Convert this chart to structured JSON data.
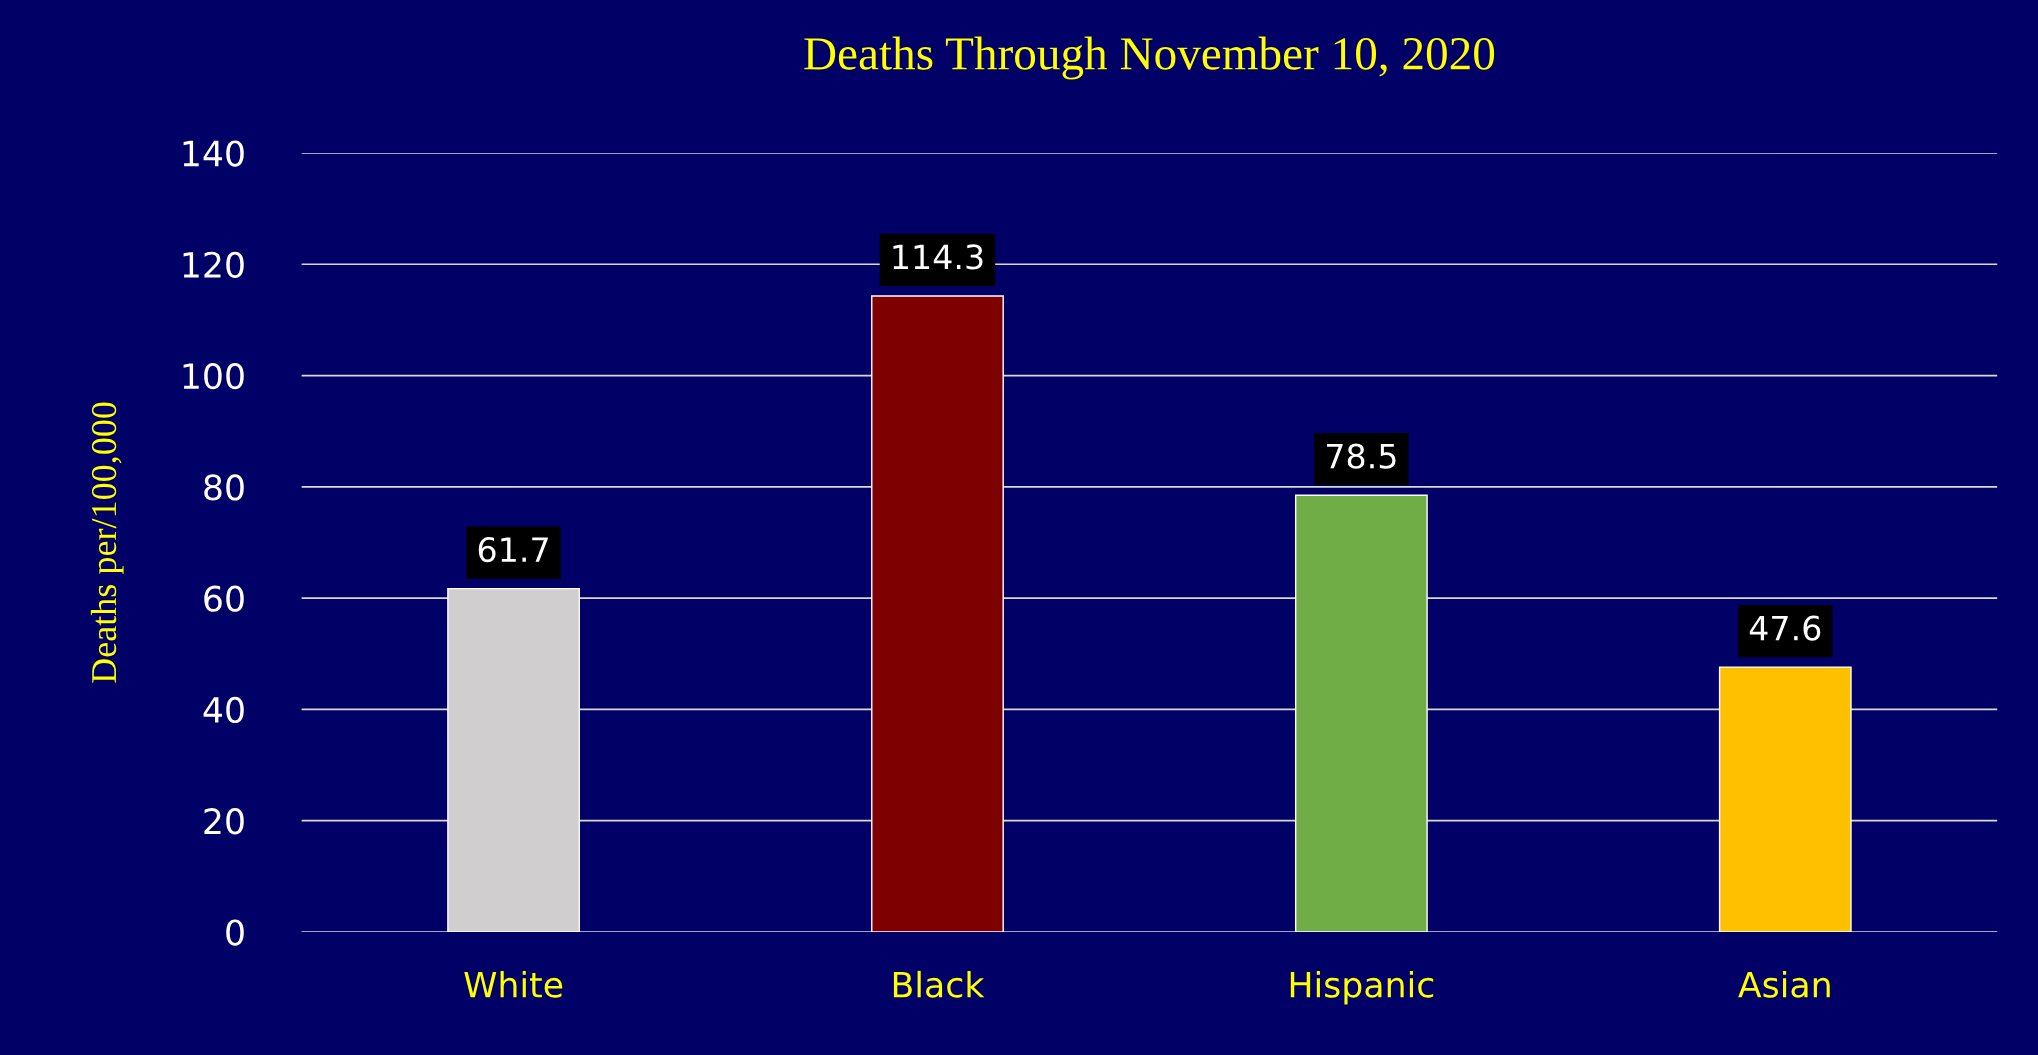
{
  "chart_data": {
    "type": "bar",
    "title": "Deaths Through November 10, 2020",
    "ylabel": "Deaths per/100,000",
    "categories": [
      "White",
      "Black",
      "Hispanic",
      "Asian"
    ],
    "values": [
      61.7,
      114.3,
      78.5,
      47.6
    ],
    "colors": [
      "#d0cece",
      "#7f0000",
      "#70ad47",
      "#ffc000"
    ],
    "ylim": [
      0,
      140
    ],
    "yticks": [
      0,
      20,
      40,
      60,
      80,
      100,
      120,
      140
    ],
    "grid": "y",
    "data_labels": true,
    "legend": false
  }
}
